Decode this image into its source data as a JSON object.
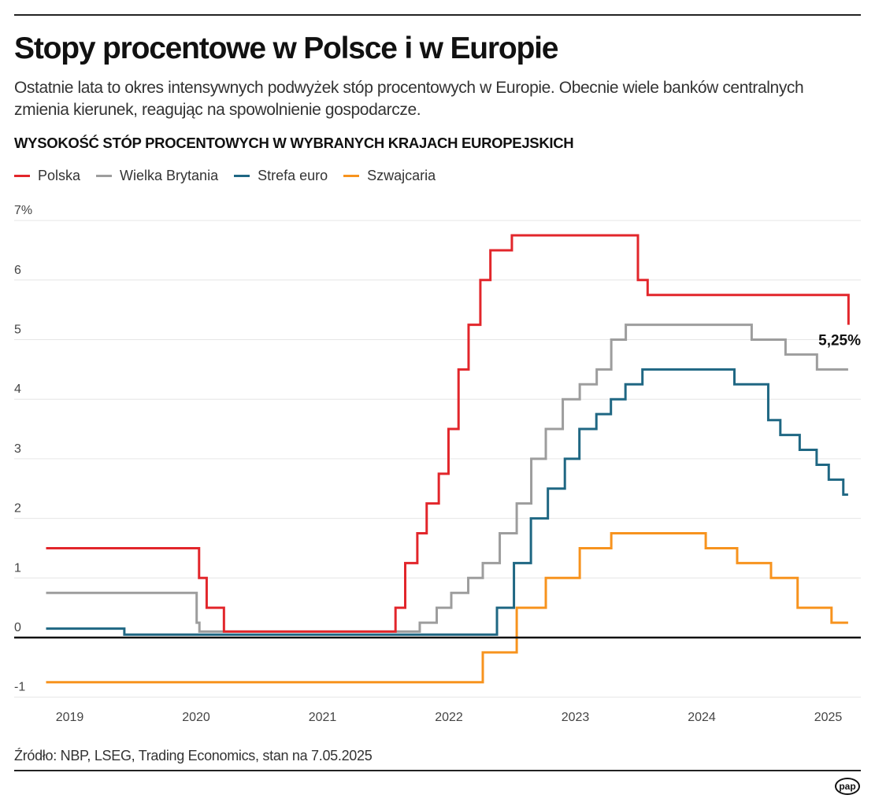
{
  "header": {
    "title": "Stopy procentowe w Polsce i w Europie",
    "subtitle": "Ostatnie lata to okres intensywnych podwyżek stóp procentowych w Europie. Obecnie wiele banków centralnych zmienia kierunek, reagując na spowolnienie gospodarcze."
  },
  "footer": {
    "source": "Źródło: NBP, LSEG, Trading Economics, stan na 7.05.2025",
    "logo": "pap"
  },
  "chart_data": {
    "type": "line",
    "step": true,
    "title": "WYSOKOŚĆ STÓP PROCENTOWYCH W WYBRANYCH KRAJACH EUROPEJSKICH",
    "xlabel": "",
    "ylabel": "",
    "xlim": [
      "2019-01-01",
      "2025-05-08"
    ],
    "ylim": [
      -1,
      7
    ],
    "x_ticks": [
      "2019",
      "2020",
      "2021",
      "2022",
      "2023",
      "2024",
      "2025"
    ],
    "y_ticks": [
      {
        "value": 7,
        "label": "7%"
      },
      {
        "value": 6,
        "label": "6"
      },
      {
        "value": 5,
        "label": "5"
      },
      {
        "value": 4,
        "label": "4"
      },
      {
        "value": 3,
        "label": "3"
      },
      {
        "value": 2,
        "label": "2"
      },
      {
        "value": 1,
        "label": "1"
      },
      {
        "value": 0,
        "label": "0"
      },
      {
        "value": -1,
        "label": "-1"
      }
    ],
    "grid": "horizontal",
    "legend_placement": "top-left",
    "annotation": {
      "series": "Polska",
      "label": "5,25%"
    },
    "series": [
      {
        "name": "Polska",
        "color": "#e2262b",
        "end": "2025-05-08",
        "points": [
          [
            "2019-01-01",
            1.5
          ],
          [
            "2020-03-18",
            1.0
          ],
          [
            "2020-04-09",
            0.5
          ],
          [
            "2020-05-29",
            0.1
          ],
          [
            "2021-10-07",
            0.5
          ],
          [
            "2021-11-04",
            1.25
          ],
          [
            "2021-12-09",
            1.75
          ],
          [
            "2022-01-05",
            2.25
          ],
          [
            "2022-02-09",
            2.75
          ],
          [
            "2022-03-09",
            3.5
          ],
          [
            "2022-04-07",
            4.5
          ],
          [
            "2022-05-06",
            5.25
          ],
          [
            "2022-06-09",
            6.0
          ],
          [
            "2022-07-08",
            6.5
          ],
          [
            "2022-09-08",
            6.75
          ],
          [
            "2023-09-07",
            6.0
          ],
          [
            "2023-10-05",
            5.75
          ],
          [
            "2025-05-08",
            5.25
          ]
        ]
      },
      {
        "name": "Wielka Brytania",
        "color": "#9d9d9d",
        "end": "2025-05-07",
        "points": [
          [
            "2019-01-01",
            0.75
          ],
          [
            "2020-03-11",
            0.25
          ],
          [
            "2020-03-19",
            0.1
          ],
          [
            "2021-12-16",
            0.25
          ],
          [
            "2022-02-03",
            0.5
          ],
          [
            "2022-03-17",
            0.75
          ],
          [
            "2022-05-05",
            1.0
          ],
          [
            "2022-06-16",
            1.25
          ],
          [
            "2022-08-04",
            1.75
          ],
          [
            "2022-09-22",
            2.25
          ],
          [
            "2022-11-03",
            3.0
          ],
          [
            "2022-12-15",
            3.5
          ],
          [
            "2023-02-02",
            4.0
          ],
          [
            "2023-03-23",
            4.25
          ],
          [
            "2023-05-11",
            4.5
          ],
          [
            "2023-06-22",
            5.0
          ],
          [
            "2023-08-03",
            5.25
          ],
          [
            "2024-08-01",
            5.0
          ],
          [
            "2024-11-07",
            4.75
          ],
          [
            "2025-02-06",
            4.5
          ]
        ]
      },
      {
        "name": "Strefa euro",
        "color": "#1f6783",
        "end": "2025-05-07",
        "points": [
          [
            "2019-01-01",
            0.15
          ],
          [
            "2019-08-15",
            0.05
          ],
          [
            "2022-07-27",
            0.5
          ],
          [
            "2022-09-14",
            1.25
          ],
          [
            "2022-11-02",
            2.0
          ],
          [
            "2022-12-21",
            2.5
          ],
          [
            "2023-02-08",
            3.0
          ],
          [
            "2023-03-22",
            3.5
          ],
          [
            "2023-05-10",
            3.75
          ],
          [
            "2023-06-21",
            4.0
          ],
          [
            "2023-08-02",
            4.25
          ],
          [
            "2023-09-20",
            4.5
          ],
          [
            "2024-06-12",
            4.25
          ],
          [
            "2024-09-18",
            3.65
          ],
          [
            "2024-10-23",
            3.4
          ],
          [
            "2024-12-18",
            3.15
          ],
          [
            "2025-02-05",
            2.9
          ],
          [
            "2025-03-12",
            2.65
          ],
          [
            "2025-04-23",
            2.4
          ]
        ]
      },
      {
        "name": "Szwajcaria",
        "color": "#f7931e",
        "end": "2025-05-07",
        "points": [
          [
            "2019-01-01",
            -0.75
          ],
          [
            "2022-06-16",
            -0.25
          ],
          [
            "2022-09-22",
            0.5
          ],
          [
            "2022-12-15",
            1.0
          ],
          [
            "2023-03-23",
            1.5
          ],
          [
            "2023-06-22",
            1.75
          ],
          [
            "2024-03-21",
            1.5
          ],
          [
            "2024-06-20",
            1.25
          ],
          [
            "2024-09-26",
            1.0
          ],
          [
            "2024-12-12",
            0.5
          ],
          [
            "2025-03-20",
            0.25
          ]
        ]
      }
    ]
  }
}
